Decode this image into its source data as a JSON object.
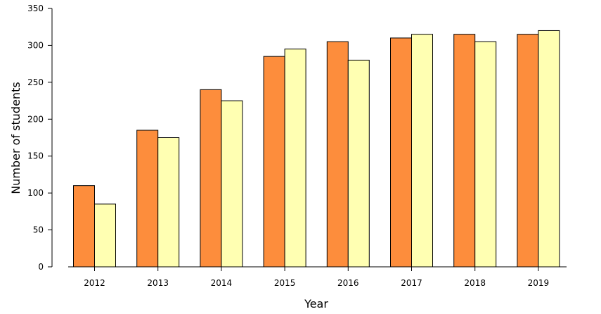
{
  "chart_data": {
    "type": "bar",
    "xlabel": "Year",
    "ylabel": "Number of students",
    "ylim": [
      0,
      350
    ],
    "yticks": [
      0,
      50,
      100,
      150,
      200,
      250,
      300,
      350
    ],
    "categories": [
      "2012",
      "2013",
      "2014",
      "2015",
      "2016",
      "2017",
      "2018",
      "2019"
    ],
    "series": [
      {
        "values": [
          110,
          185,
          240,
          285,
          305,
          310,
          315,
          315
        ],
        "color": "#fd8d3c"
      },
      {
        "values": [
          85,
          175,
          225,
          295,
          280,
          315,
          305,
          320
        ],
        "color": "#ffffb2"
      }
    ],
    "grid": false,
    "legend": "none"
  }
}
